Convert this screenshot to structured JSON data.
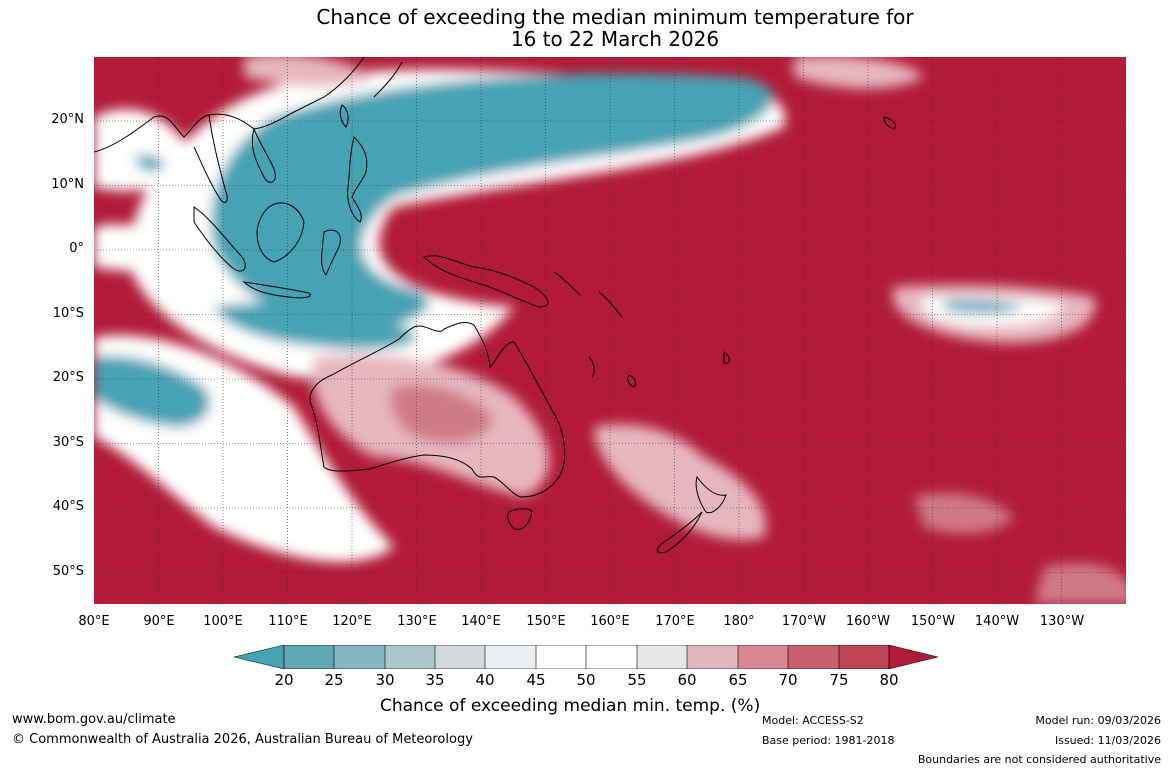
{
  "title": {
    "line1": "Chance of exceeding the median minimum temperature for",
    "line2": "16 to 22 March 2026"
  },
  "axes": {
    "lat_labels": [
      "20°N",
      "10°N",
      "0°",
      "10°S",
      "20°S",
      "30°S",
      "40°S",
      "50°S"
    ],
    "lon_labels": [
      "80°E",
      "90°E",
      "100°E",
      "110°E",
      "120°E",
      "130°E",
      "140°E",
      "150°E",
      "160°E",
      "170°E",
      "180°",
      "170°W",
      "160°W",
      "150°W",
      "140°W",
      "130°W"
    ]
  },
  "legend": {
    "title": "Chance of exceeding median min. temp. (%)",
    "ticks": [
      "20",
      "25",
      "30",
      "35",
      "40",
      "45",
      "50",
      "55",
      "60",
      "65",
      "70",
      "75",
      "80"
    ],
    "colors": [
      "#46a3b3",
      "#60a6b4",
      "#86b6c1",
      "#adc6cb",
      "#d3d9db",
      "#eaf0f2",
      "#ffffff",
      "#ffffff",
      "#e6e6e6",
      "#e2b7bc",
      "#d8868f",
      "#c8606d",
      "#bf4655",
      "#b11b38"
    ]
  },
  "footer": {
    "website": "www.bom.gov.au/climate",
    "copyright": "© Commonwealth of Australia 2026, Australian Bureau of Meteorology",
    "model": "Model: ACCESS-S2",
    "base_period": "Base period: 1981-2018",
    "model_run": "Model run: 09/03/2026",
    "issued": "Issued: 11/03/2026",
    "boundaries": "Boundaries are not considered authoritative"
  },
  "map_colors": {
    "high": "#b11b38",
    "pink": "#cf7a86",
    "lightpink": "#e6b7be",
    "neutral": "#ffffff",
    "low": "#46a3b3",
    "coast": "#000000",
    "grid": "#333333"
  }
}
